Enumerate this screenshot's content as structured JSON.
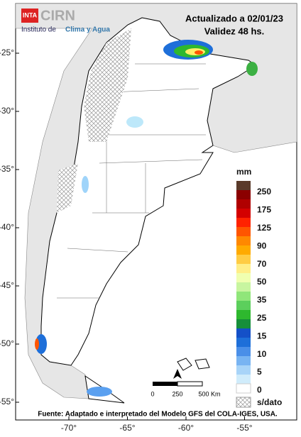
{
  "header": {
    "logo": "INTA",
    "brand": "CIRN",
    "institute_prefix": "Instituto de",
    "institute_name": "Clima y Agua",
    "updated": "Actualizado a 02/01/23",
    "validity": "Validez 48 hs."
  },
  "lat_labels": [
    "-25°",
    "-30°",
    "-35°",
    "-40°",
    "-45°",
    "-50°",
    "-55°"
  ],
  "lon_labels": [
    "-70°",
    "-65°",
    "-60°",
    "-55°"
  ],
  "legend": {
    "unit": "mm",
    "labels": [
      "250",
      "175",
      "125",
      "90",
      "70",
      "50",
      "35",
      "25",
      "15",
      "10",
      "5",
      "0"
    ],
    "no_data": "s/dato"
  },
  "scale_bar": {
    "labels": [
      "0",
      "250",
      "500 Km"
    ]
  },
  "footer": "Fuente: Adaptado e interpretado del Modelo GFS del COLA-IGES, USA."
}
